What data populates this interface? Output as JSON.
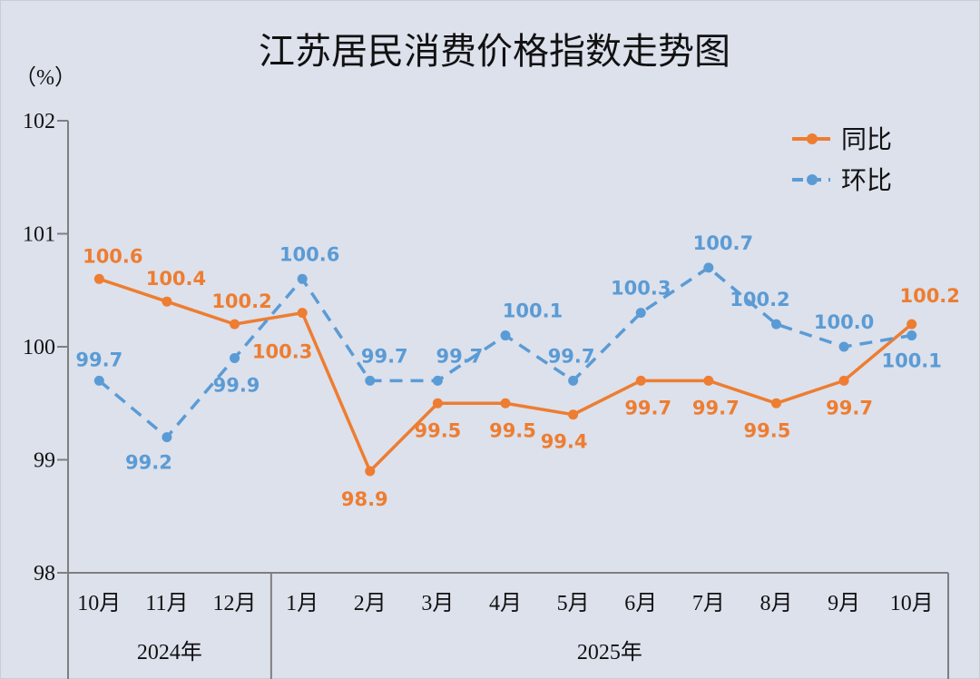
{
  "chart_data": {
    "type": "line",
    "title": "江苏居民消费价格指数走势图",
    "ylabel": "（%）",
    "ylim": [
      98,
      102
    ],
    "yticks": [
      98,
      99,
      100,
      101,
      102
    ],
    "categories": [
      "10月",
      "11月",
      "12月",
      "1月",
      "2月",
      "3月",
      "4月",
      "5月",
      "6月",
      "7月",
      "8月",
      "9月",
      "10月"
    ],
    "groups": [
      {
        "label": "2024年",
        "count": 3
      },
      {
        "label": "2025年",
        "count": 10
      }
    ],
    "grid": false,
    "legend_position": "top-right",
    "series": [
      {
        "name": "同比",
        "color": "#ee7d31",
        "style": "solid",
        "values": [
          100.6,
          100.4,
          100.2,
          100.3,
          98.9,
          99.5,
          99.5,
          99.4,
          99.7,
          99.7,
          99.5,
          99.7,
          100.2
        ]
      },
      {
        "name": "环比",
        "color": "#5b9bd5",
        "style": "dashed",
        "values": [
          99.7,
          99.2,
          99.9,
          100.6,
          99.7,
          99.7,
          100.1,
          99.7,
          100.3,
          100.7,
          100.2,
          100.0,
          100.1
        ]
      }
    ]
  }
}
